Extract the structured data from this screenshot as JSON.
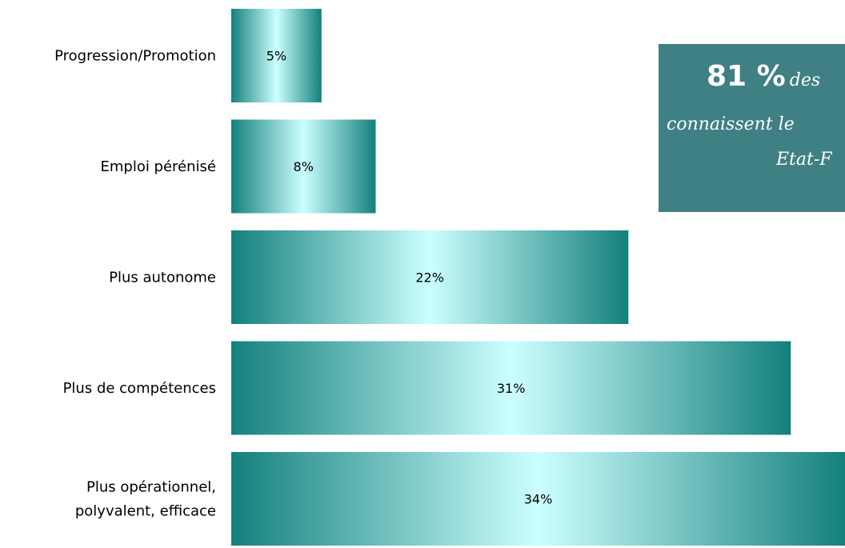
{
  "chart_data": {
    "type": "bar",
    "orientation": "horizontal",
    "categories": [
      "Progression/Promotion",
      "Emploi pérénisé",
      "Plus autonome",
      "Plus de compétences",
      "Plus opérationnel, polyvalent, efficace"
    ],
    "values": [
      5,
      8,
      22,
      31,
      34
    ],
    "data_labels": [
      "5%",
      "8%",
      "22%",
      "31%",
      "34%"
    ],
    "xlim": [
      0,
      34
    ],
    "grid": false,
    "legend": "none",
    "colors": {
      "bar_edge": "#14807c",
      "bar_center": "#ccffff",
      "callout_bg": "#3f8084"
    }
  },
  "callout": {
    "big": "81 %",
    "line1_rest": "des",
    "line2": "connaissent le",
    "line3": "Etat-F"
  }
}
